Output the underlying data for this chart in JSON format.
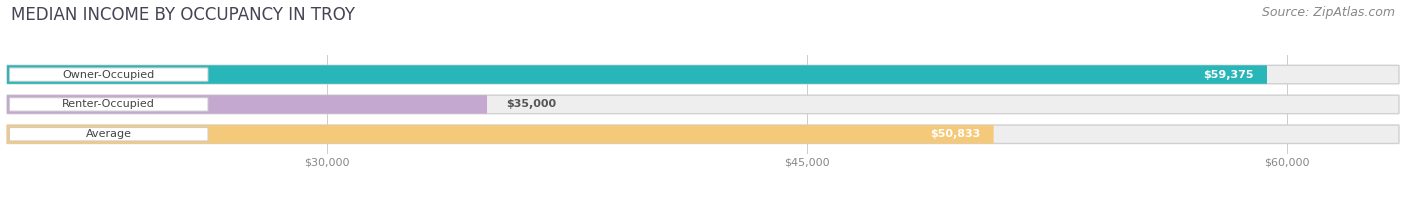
{
  "title": "MEDIAN INCOME BY OCCUPANCY IN TROY",
  "source": "Source: ZipAtlas.com",
  "categories": [
    "Owner-Occupied",
    "Renter-Occupied",
    "Average"
  ],
  "values": [
    59375,
    35000,
    50833
  ],
  "bar_colors": [
    "#29b6b8",
    "#c4a8d0",
    "#f5c97a"
  ],
  "bar_labels": [
    "$59,375",
    "$35,000",
    "$50,833"
  ],
  "value_label_inside": [
    true,
    false,
    true
  ],
  "xlim_min": 20000,
  "xlim_max": 63500,
  "x_ticks": [
    30000,
    45000,
    60000
  ],
  "x_tick_labels": [
    "$30,000",
    "$45,000",
    "$60,000"
  ],
  "background_color": "#ffffff",
  "bar_bg_color": "#eeeeee",
  "title_color": "#444455",
  "source_color": "#888888",
  "title_fontsize": 12,
  "source_fontsize": 9,
  "bar_height": 0.62,
  "cat_label_fontsize": 8,
  "val_label_fontsize": 8
}
